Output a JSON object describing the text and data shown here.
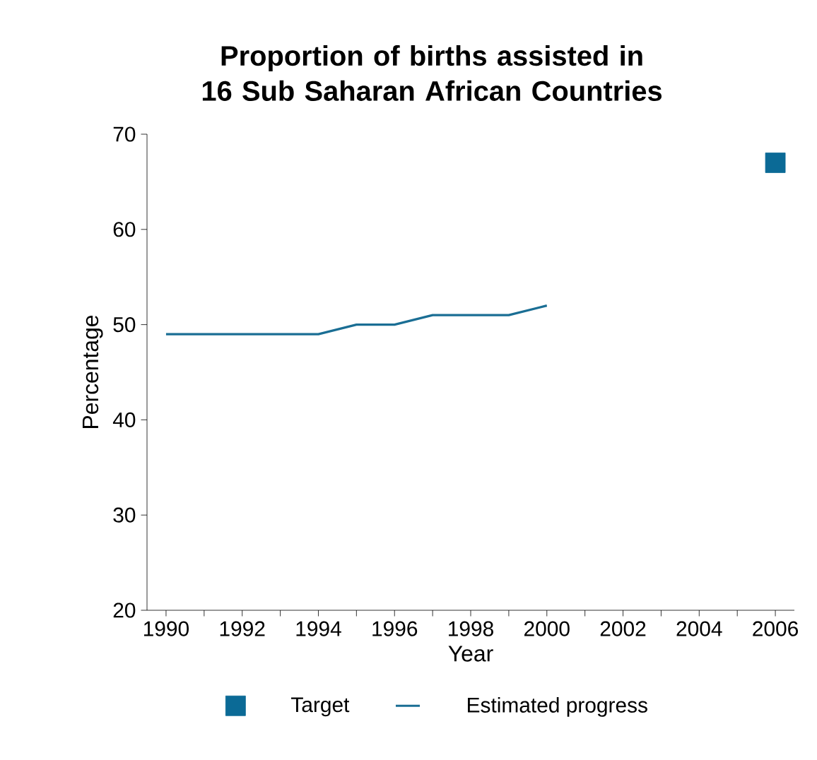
{
  "chart_data": {
    "type": "line",
    "title": "Proportion of births assisted in 16 Sub Saharan African Countries",
    "xlabel": "Year",
    "ylabel": "Percentage",
    "xlim": [
      1989.5,
      2006.5
    ],
    "ylim": [
      20,
      70
    ],
    "xticks": [
      1990,
      {
        "value": 1991,
        "label": null
      },
      1992,
      {
        "value": 1993,
        "label": null
      },
      1994,
      {
        "value": 1995,
        "label": null
      },
      1996,
      {
        "value": 1997,
        "label": null
      },
      1998,
      {
        "value": 1999,
        "label": null
      },
      2000,
      {
        "value": 2001,
        "label": null
      },
      2002,
      {
        "value": 2003,
        "label": null
      },
      2004,
      {
        "value": 2005,
        "label": null
      },
      2006
    ],
    "yticks": [
      20,
      30,
      40,
      50,
      60,
      70
    ],
    "grid": false,
    "legend": "bottom",
    "series": [
      {
        "name": "Target",
        "type": "scatter",
        "marker": "square",
        "color": "#0b6a96",
        "x": [
          2006
        ],
        "values": [
          67
        ]
      },
      {
        "name": "Estimated progress",
        "marker": "none",
        "color": "#1a6e94",
        "x": [
          1990,
          1991,
          1992,
          1993,
          1994,
          1995,
          1996,
          1997,
          1998,
          1999,
          2000
        ],
        "values": [
          49,
          49,
          49,
          49,
          49,
          50,
          50,
          51,
          51,
          51,
          52
        ]
      }
    ]
  }
}
